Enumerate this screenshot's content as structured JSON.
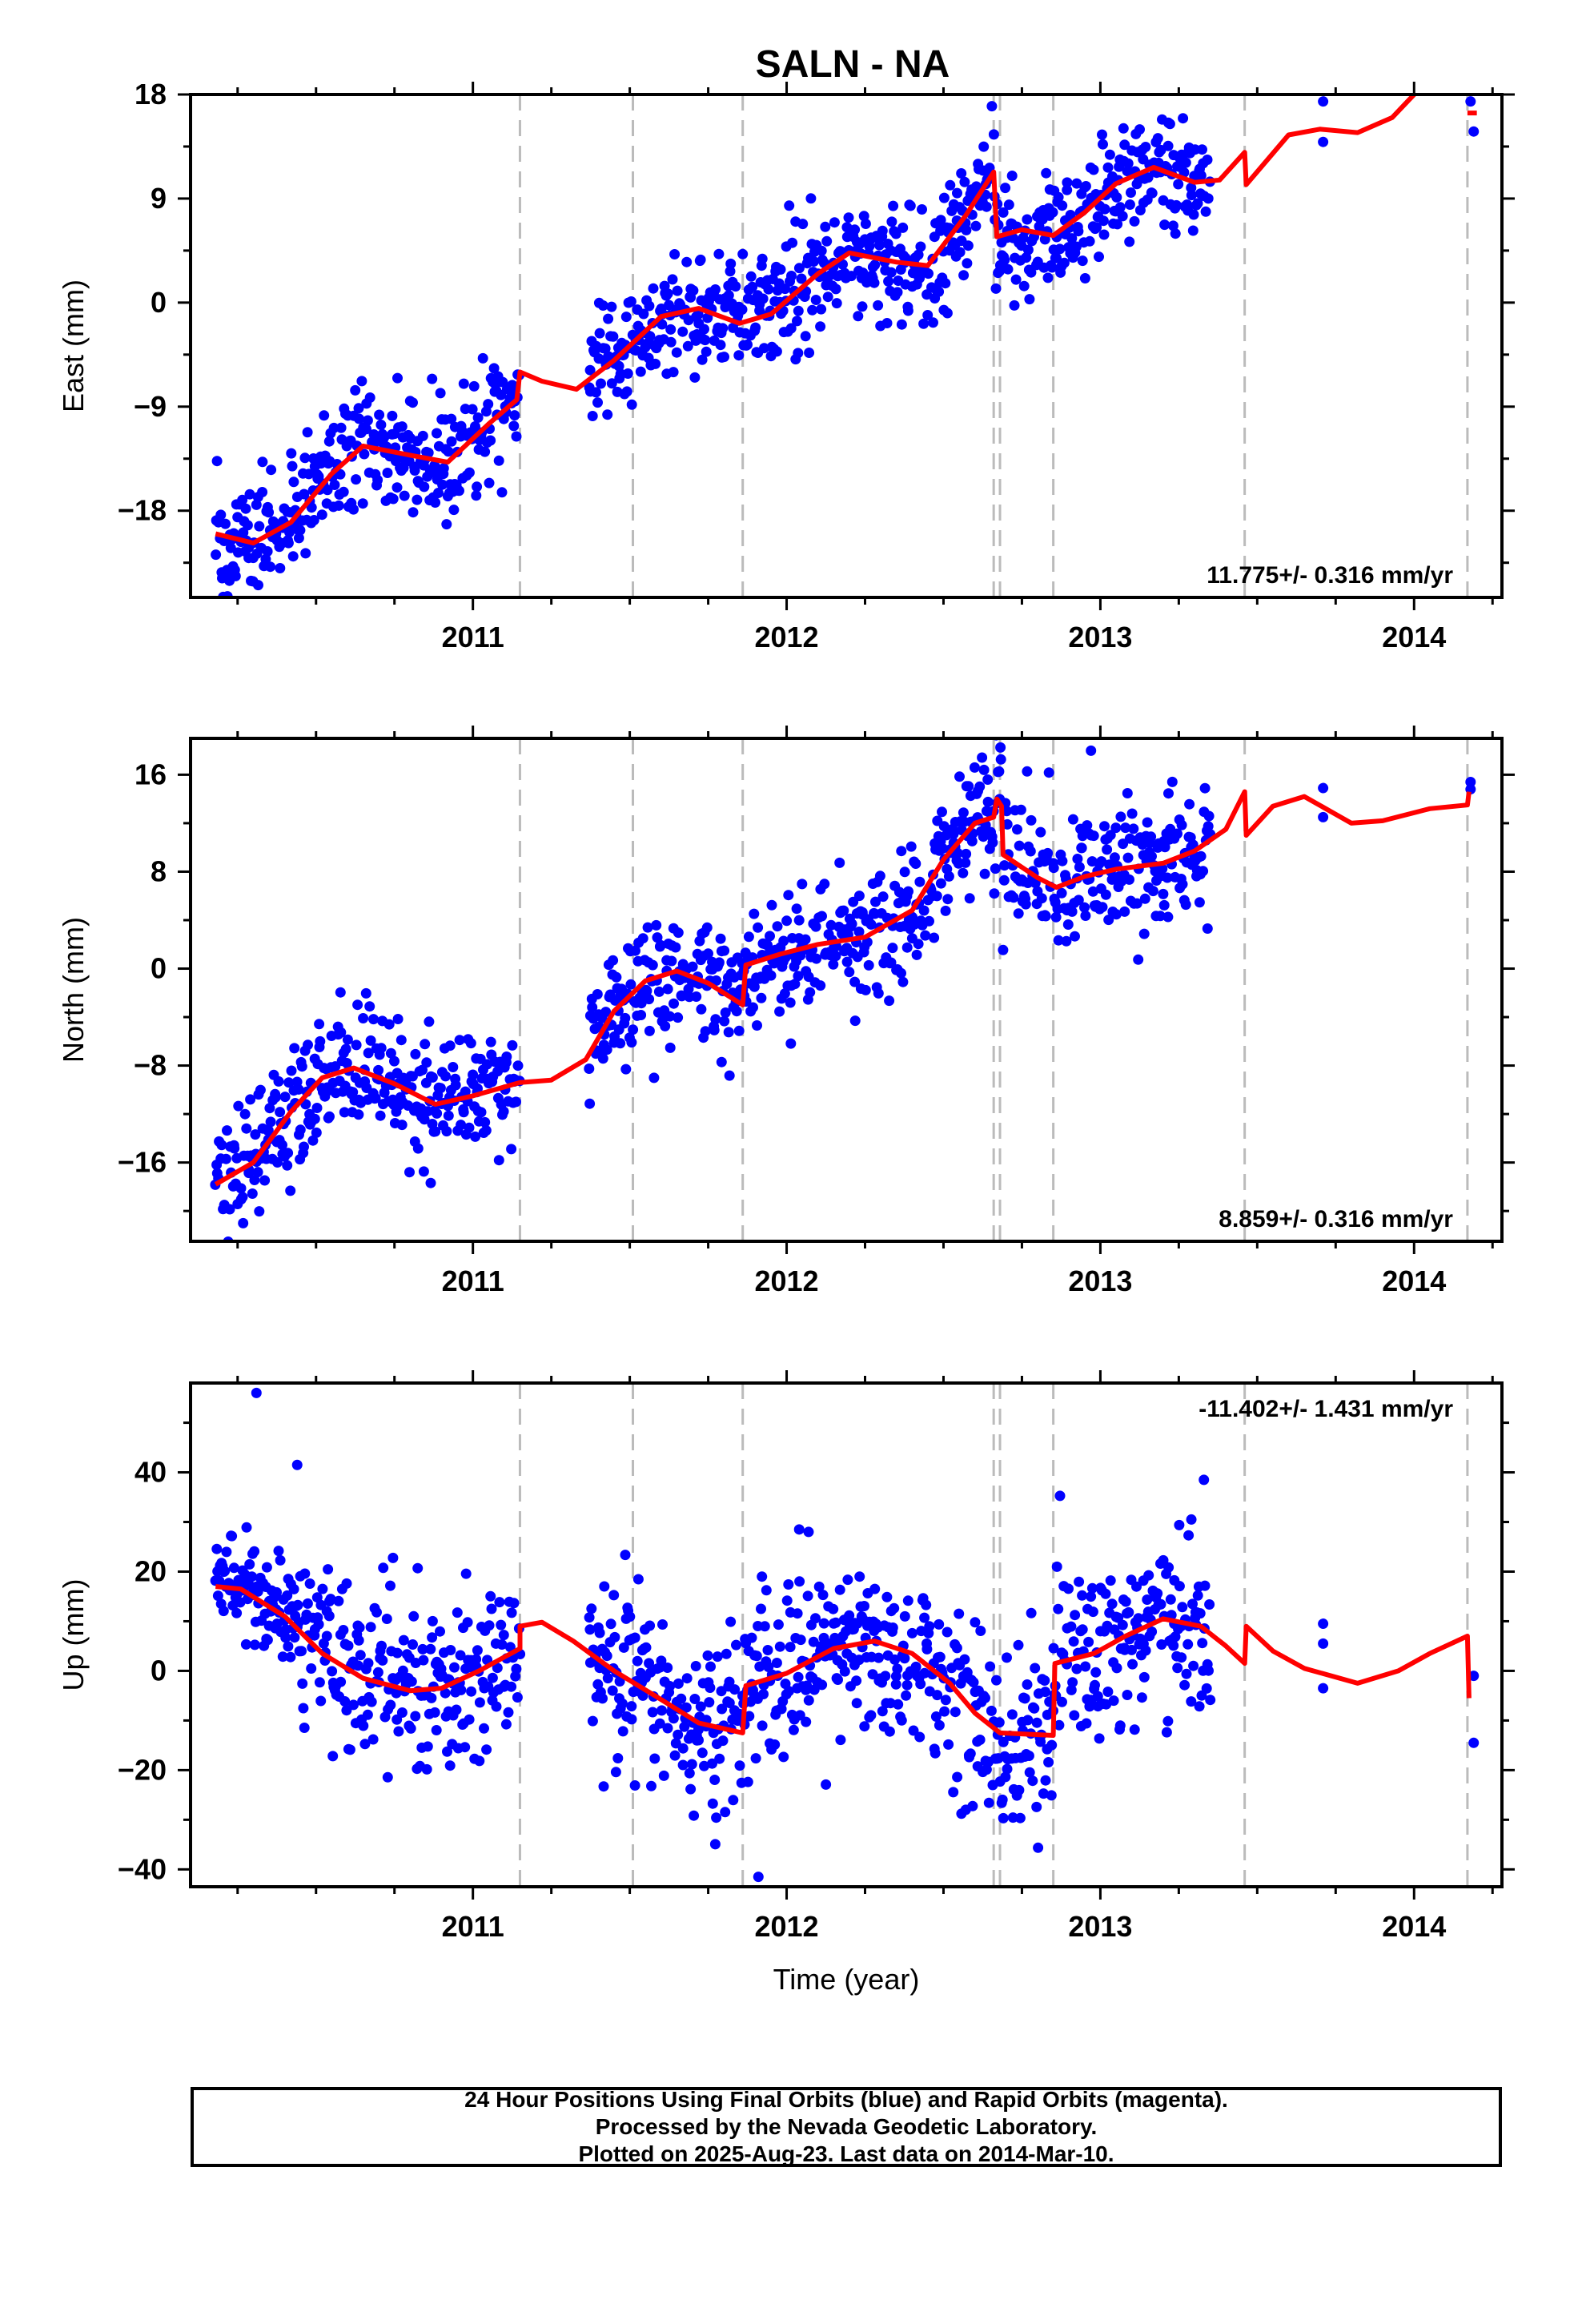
{
  "chart_data": {
    "title": "SALN - NA",
    "xlabel": "Time (year)",
    "x_ticks": [
      2011,
      2012,
      2013,
      2014
    ],
    "xlim": [
      2010.1,
      2014.28
    ],
    "breaks": [
      2011.15,
      2011.51,
      2011.86,
      2012.66,
      2012.68,
      2012.85,
      2013.46,
      2014.17
    ],
    "colors": {
      "data": "#0000ff",
      "model": "#ff0000",
      "breaks": "#bbbbbb"
    },
    "panels": [
      {
        "name": "East",
        "type": "scatter",
        "ylabel": "East (mm)",
        "ylim": [
          -25.5,
          18
        ],
        "yticks": [
          -18,
          -9,
          0,
          9,
          18
        ],
        "rate_label": "11.775+/- 0.316 mm/yr",
        "rate_position": "bottom-right",
        "model": [
          [
            2010.18,
            -20.0
          ],
          [
            2010.3,
            -20.8
          ],
          [
            2010.42,
            -19.0
          ],
          [
            2010.55,
            -14.8
          ],
          [
            2010.65,
            -12.4
          ],
          [
            2010.8,
            -13.2
          ],
          [
            2010.92,
            -13.8
          ],
          [
            2011.05,
            -10.5
          ],
          [
            2011.14,
            -8.4
          ],
          [
            2011.15,
            -6.0
          ],
          [
            2011.22,
            -6.8
          ],
          [
            2011.33,
            -7.5
          ],
          [
            2011.45,
            -5.0
          ],
          [
            2011.6,
            -1.2
          ],
          [
            2011.72,
            -0.5
          ],
          [
            2011.85,
            -1.8
          ],
          [
            2011.95,
            -1.0
          ],
          [
            2012.1,
            2.5
          ],
          [
            2012.2,
            4.3
          ],
          [
            2012.35,
            3.5
          ],
          [
            2012.45,
            3.2
          ],
          [
            2012.57,
            7.5
          ],
          [
            2012.66,
            11.3
          ],
          [
            2012.67,
            5.7
          ],
          [
            2012.75,
            6.3
          ],
          [
            2012.85,
            5.8
          ],
          [
            2012.95,
            7.8
          ],
          [
            2013.05,
            10.3
          ],
          [
            2013.17,
            11.7
          ],
          [
            2013.3,
            10.4
          ],
          [
            2013.38,
            10.6
          ],
          [
            2013.46,
            13.0
          ],
          [
            2013.465,
            10.2
          ],
          [
            2013.6,
            14.5
          ],
          [
            2013.7,
            15.0
          ],
          [
            2013.82,
            14.7
          ],
          [
            2013.93,
            16.0
          ],
          [
            2014.0,
            18.0
          ]
        ],
        "model_tail": [
          [
            2014.17,
            16.4
          ],
          [
            2014.2,
            16.4
          ]
        ],
        "isolated_points": [
          [
            2013.71,
            17.4
          ],
          [
            2013.71,
            13.9
          ],
          [
            2014.18,
            17.4
          ],
          [
            2014.19,
            14.8
          ]
        ]
      },
      {
        "name": "North",
        "type": "scatter",
        "ylabel": "North (mm)",
        "ylim": [
          -22.5,
          19
        ],
        "yticks": [
          -16,
          -8,
          0,
          8,
          16
        ],
        "rate_label": "8.859+/- 0.316 mm/yr",
        "rate_position": "bottom-right",
        "model": [
          [
            2010.18,
            -17.8
          ],
          [
            2010.3,
            -16.0
          ],
          [
            2010.42,
            -11.8
          ],
          [
            2010.52,
            -9.0
          ],
          [
            2010.62,
            -8.2
          ],
          [
            2010.75,
            -9.5
          ],
          [
            2010.88,
            -11.2
          ],
          [
            2011.0,
            -10.5
          ],
          [
            2011.15,
            -9.4
          ],
          [
            2011.25,
            -9.2
          ],
          [
            2011.36,
            -7.5
          ],
          [
            2011.45,
            -3.5
          ],
          [
            2011.55,
            -1.0
          ],
          [
            2011.65,
            -0.2
          ],
          [
            2011.75,
            -1.2
          ],
          [
            2011.86,
            -3.0
          ],
          [
            2011.87,
            0.3
          ],
          [
            2011.98,
            1.2
          ],
          [
            2012.1,
            2.0
          ],
          [
            2012.25,
            2.6
          ],
          [
            2012.4,
            4.8
          ],
          [
            2012.5,
            9.0
          ],
          [
            2012.6,
            12.0
          ],
          [
            2012.66,
            12.5
          ],
          [
            2012.67,
            14.0
          ],
          [
            2012.685,
            13.4
          ],
          [
            2012.69,
            9.4
          ],
          [
            2012.8,
            7.5
          ],
          [
            2012.86,
            6.7
          ],
          [
            2012.95,
            7.6
          ],
          [
            2013.05,
            8.2
          ],
          [
            2013.2,
            8.7
          ],
          [
            2013.3,
            9.7
          ],
          [
            2013.4,
            11.5
          ],
          [
            2013.46,
            14.6
          ],
          [
            2013.465,
            11.0
          ],
          [
            2013.55,
            13.4
          ],
          [
            2013.65,
            14.2
          ],
          [
            2013.8,
            12.0
          ],
          [
            2013.9,
            12.2
          ],
          [
            2014.05,
            13.2
          ],
          [
            2014.17,
            13.5
          ],
          [
            2014.175,
            14.6
          ]
        ],
        "model_tail": [],
        "isolated_points": [
          [
            2013.71,
            14.9
          ],
          [
            2013.71,
            12.5
          ],
          [
            2014.18,
            15.4
          ],
          [
            2014.18,
            14.8
          ]
        ]
      },
      {
        "name": "Up",
        "type": "scatter",
        "ylabel": "Up (mm)",
        "ylim": [
          -43.5,
          58
        ],
        "yticks": [
          -40,
          -20,
          0,
          20,
          40
        ],
        "rate_label": "-11.402+/- 1.431 mm/yr",
        "rate_position": "top-right",
        "model": [
          [
            2010.18,
            17.0
          ],
          [
            2010.26,
            16.5
          ],
          [
            2010.4,
            11.0
          ],
          [
            2010.52,
            3.5
          ],
          [
            2010.65,
            -1.5
          ],
          [
            2010.8,
            -4.0
          ],
          [
            2010.9,
            -3.5
          ],
          [
            2011.02,
            0.0
          ],
          [
            2011.15,
            4.5
          ],
          [
            2011.15,
            9.0
          ],
          [
            2011.22,
            9.8
          ],
          [
            2011.32,
            6.0
          ],
          [
            2011.45,
            0.0
          ],
          [
            2011.58,
            -5.0
          ],
          [
            2011.72,
            -10.5
          ],
          [
            2011.86,
            -12.5
          ],
          [
            2011.87,
            -3.0
          ],
          [
            2012.0,
            -0.5
          ],
          [
            2012.15,
            4.5
          ],
          [
            2012.28,
            6.0
          ],
          [
            2012.4,
            3.5
          ],
          [
            2012.52,
            -2.5
          ],
          [
            2012.6,
            -8.5
          ],
          [
            2012.68,
            -12.5
          ],
          [
            2012.85,
            -13.0
          ],
          [
            2012.855,
            1.5
          ],
          [
            2012.98,
            3.5
          ],
          [
            2013.08,
            7.0
          ],
          [
            2013.2,
            10.5
          ],
          [
            2013.32,
            9.0
          ],
          [
            2013.4,
            5.0
          ],
          [
            2013.46,
            1.5
          ],
          [
            2013.465,
            9.0
          ],
          [
            2013.55,
            4.0
          ],
          [
            2013.65,
            0.5
          ],
          [
            2013.82,
            -2.5
          ],
          [
            2013.95,
            0.0
          ],
          [
            2014.05,
            3.5
          ],
          [
            2014.17,
            7.0
          ],
          [
            2014.175,
            -5.5
          ]
        ],
        "model_tail": [],
        "isolated_points": [
          [
            2013.71,
            9.5
          ],
          [
            2013.71,
            5.5
          ],
          [
            2013.71,
            -3.5
          ],
          [
            2014.19,
            -1.0
          ],
          [
            2014.19,
            -14.5
          ]
        ],
        "outliers": [
          [
            2010.31,
            56.0
          ],
          [
            2010.44,
            41.5
          ],
          [
            2012.04,
            28.5
          ],
          [
            2012.07,
            28.0
          ],
          [
            2011.91,
            -41.5
          ],
          [
            2013.33,
            38.5
          ],
          [
            2013.29,
            30.5
          ]
        ]
      }
    ],
    "data_generation": {
      "segments": [
        [
          2010.18,
          2011.15
        ],
        [
          2011.37,
          2013.35
        ]
      ],
      "step_days": 1,
      "scatter_mm": [
        2.6,
        2.8,
        9.0
      ]
    }
  },
  "caption": {
    "line1": "24 Hour Positions Using Final Orbits (blue) and Rapid Orbits (magenta).",
    "line2": "Processed by the Nevada Geodetic Laboratory.",
    "line3": "Plotted on 2025-Aug-23. Last data on 2014-Mar-10."
  }
}
